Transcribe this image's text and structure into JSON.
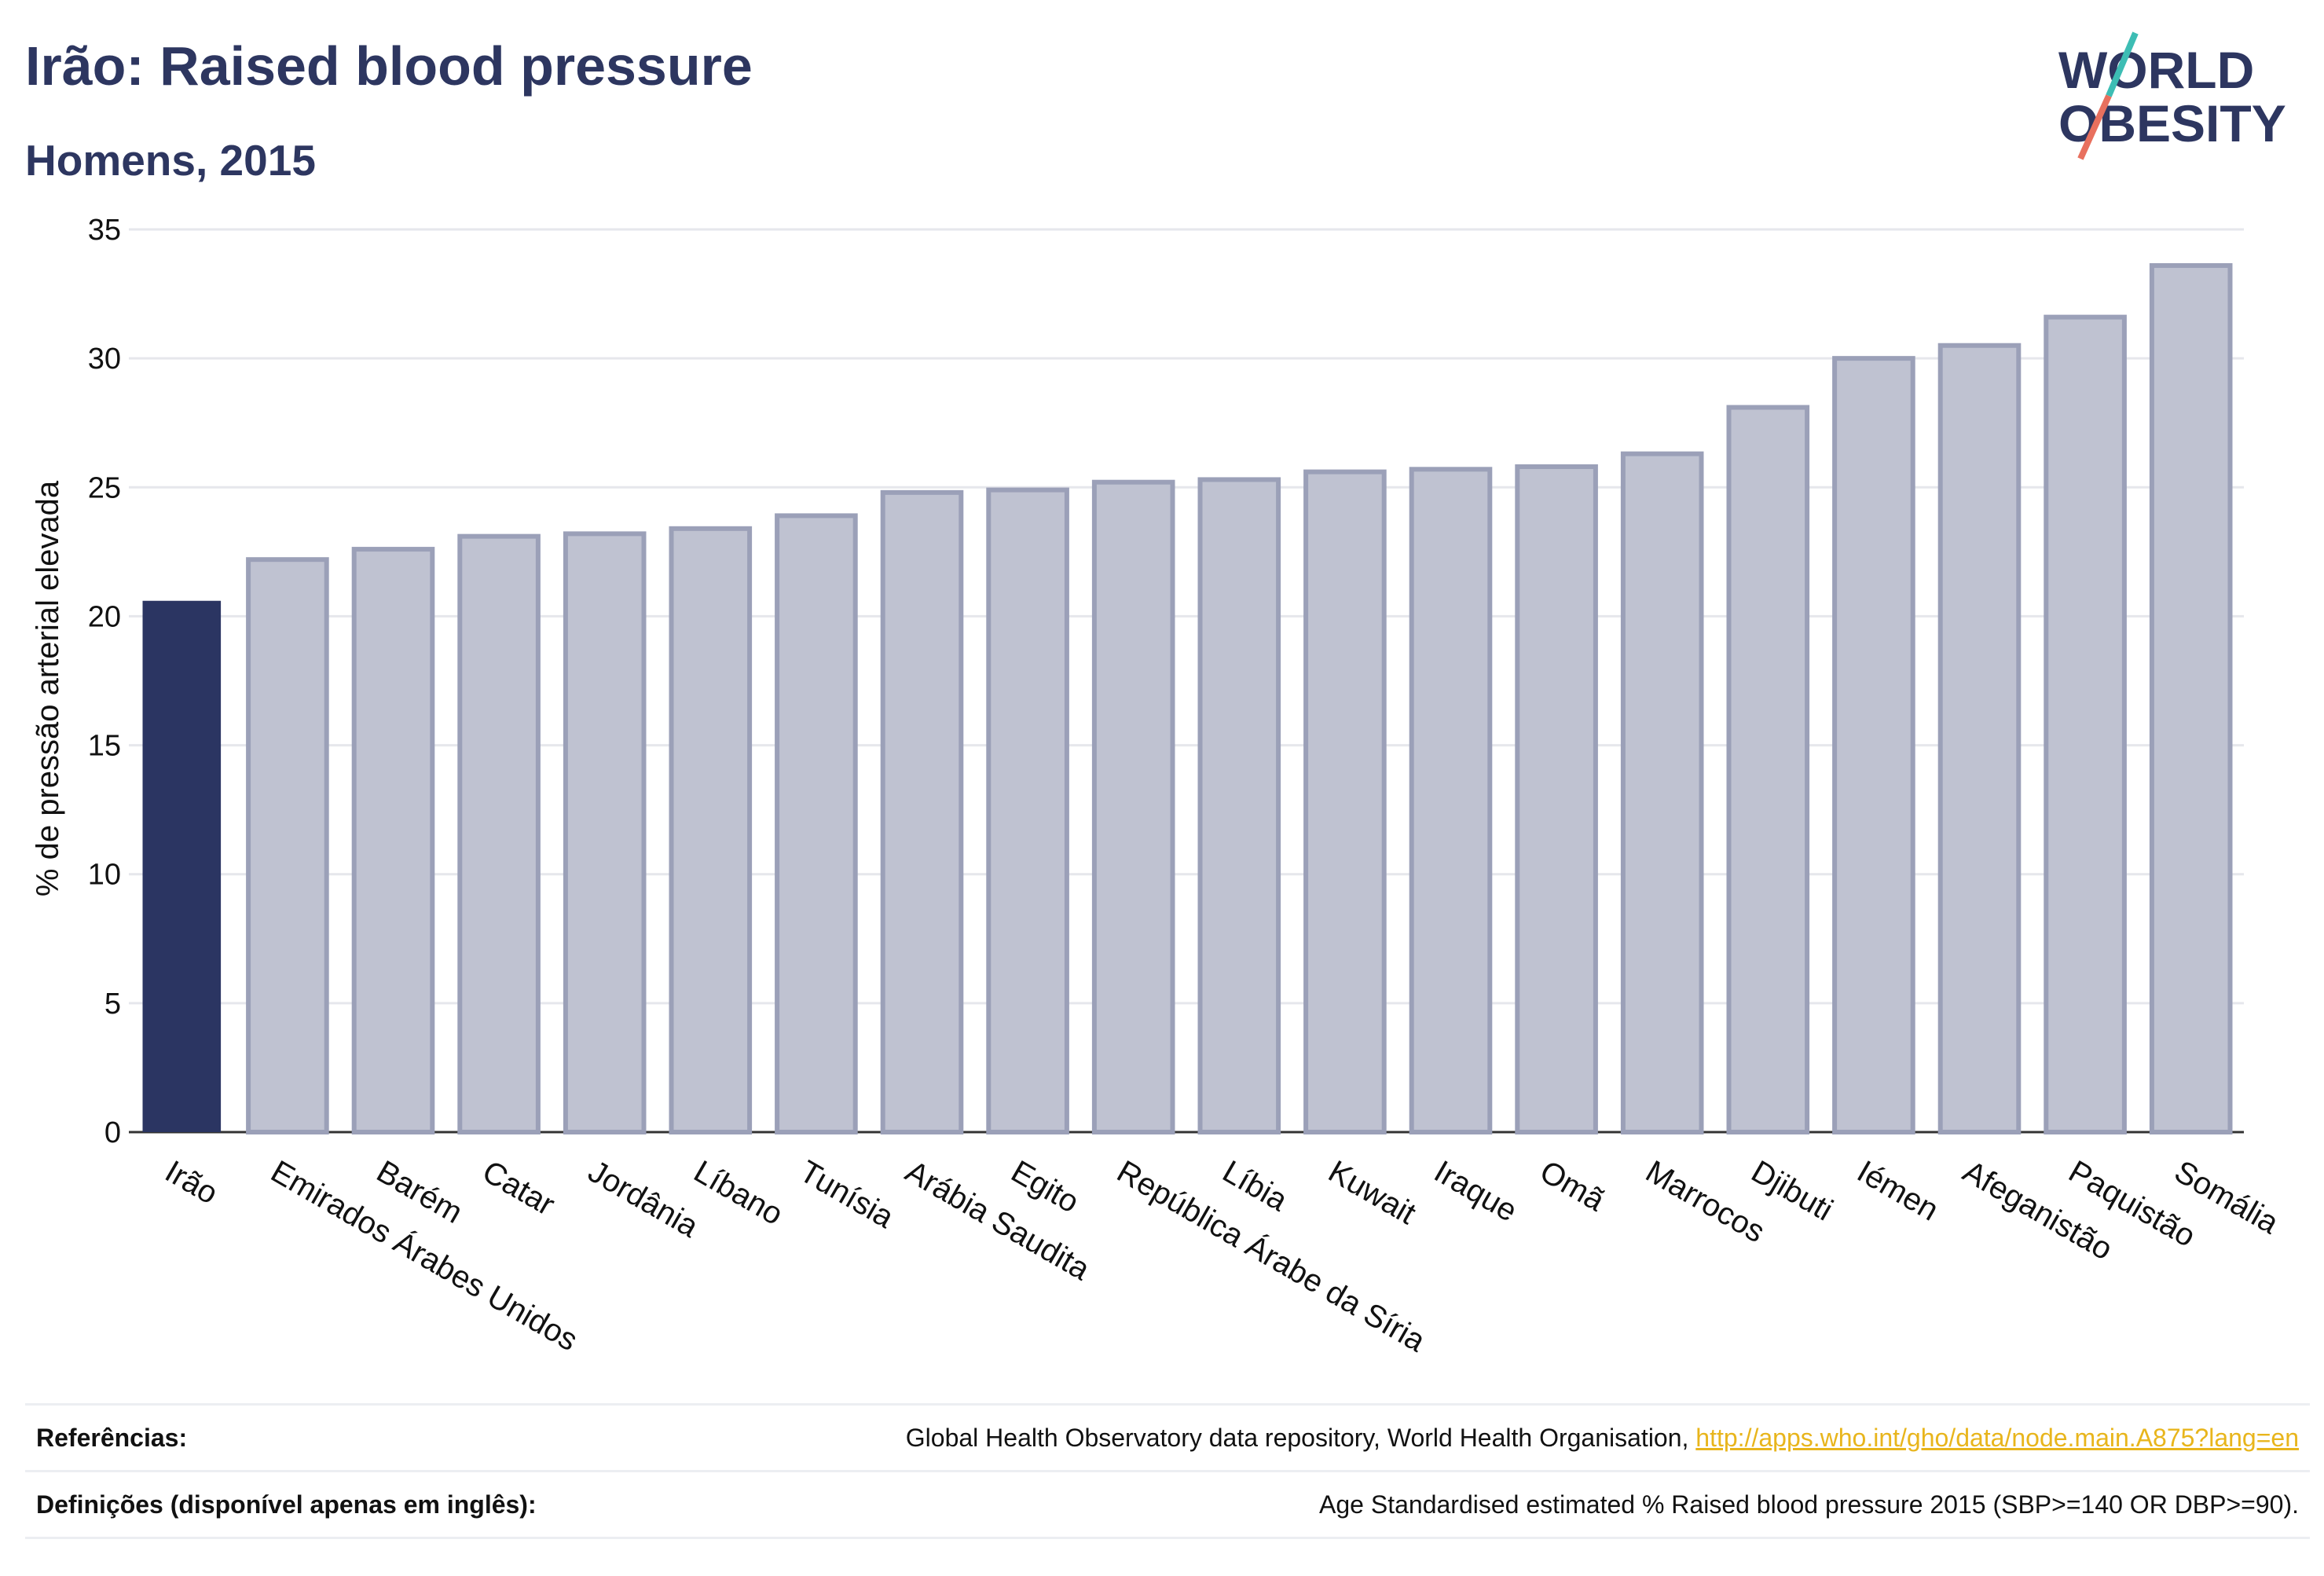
{
  "title": "Irão: Raised blood pressure",
  "subtitle": "Homens, 2015",
  "logo": {
    "line1": "WORLD",
    "line2": "OBESITY"
  },
  "colors": {
    "highlight": "#2b3562",
    "bar_fill": "#bfc2d1",
    "bar_stroke": "#9ba0b8",
    "grid": "#e6e7ec",
    "text": "#2d3660"
  },
  "chart_data": {
    "type": "bar",
    "ylabel": "% de pressão arterial elevada",
    "ylim": [
      0,
      35
    ],
    "yticks": [
      0,
      5,
      10,
      15,
      20,
      25,
      30,
      35
    ],
    "grid": true,
    "highlight_category": "Irão",
    "categories": [
      "Irão",
      "Emirados Árabes Unidos",
      "Barém",
      "Catar",
      "Jordânia",
      "Líbano",
      "Tunísia",
      "Arábia Saudita",
      "Egito",
      "República Árabe da Síria",
      "Líbia",
      "Kuwait",
      "Iraque",
      "Omã",
      "Marrocos",
      "Djibuti",
      "Iémen",
      "Afeganistão",
      "Paquistão",
      "Somália"
    ],
    "values": [
      20.6,
      22.2,
      22.6,
      23.1,
      23.2,
      23.4,
      23.9,
      24.8,
      24.9,
      25.2,
      25.3,
      25.6,
      25.7,
      25.8,
      26.3,
      28.1,
      30.0,
      30.5,
      31.6,
      33.6
    ]
  },
  "footer": {
    "references_label": "Referências:",
    "references_text": "Global Health Observatory data repository, World Health Organisation, ",
    "references_link": "http://apps.who.int/gho/data/node.main.A875?lang=en",
    "definitions_label": "Definições (disponível apenas em inglês):",
    "definitions_text": "Age Standardised estimated % Raised blood pressure 2015 (SBP>=140 OR DBP>=90)."
  }
}
